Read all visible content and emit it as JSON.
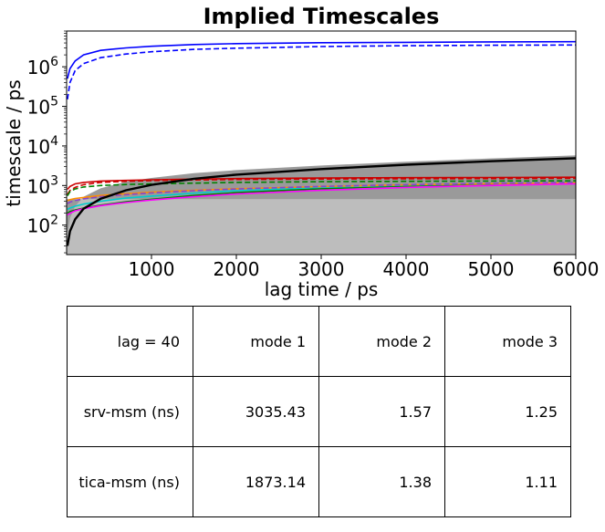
{
  "chart_data": {
    "type": "line",
    "title": "Implied Timescales",
    "xlabel": "lag time / ps",
    "ylabel": "timescale / ps",
    "xlim": [
      0,
      6000
    ],
    "ylim": [
      18,
      8000000
    ],
    "yscale": "log",
    "xticks": [
      1000,
      2000,
      3000,
      4000,
      5000,
      6000
    ],
    "xtick_labels": [
      "1000",
      "2000",
      "3000",
      "4000",
      "5000",
      "6000"
    ],
    "yticks": [
      100,
      1000,
      10000,
      100000,
      1000000
    ],
    "ytick_labels": [
      {
        "base": "10",
        "exp": "2"
      },
      {
        "base": "10",
        "exp": "3"
      },
      {
        "base": "10",
        "exp": "4"
      },
      {
        "base": "10",
        "exp": "5"
      },
      {
        "base": "10",
        "exp": "6"
      }
    ],
    "grid": false,
    "x": [
      10,
      40,
      100,
      200,
      400,
      700,
      1000,
      1500,
      2000,
      3000,
      4000,
      5000,
      6000
    ],
    "series": [
      {
        "color": "#0000ff",
        "style": "solid",
        "values": [
          500000,
          900000,
          1400000,
          2000000,
          2600000,
          3000000,
          3300000,
          3650000,
          3850000,
          4050000,
          4150000,
          4250000,
          4300000
        ]
      },
      {
        "color": "#0000ff",
        "style": "dashed",
        "values": [
          150000,
          400000,
          800000,
          1200000,
          1700000,
          2100000,
          2400000,
          2750000,
          2950000,
          3250000,
          3400000,
          3500000,
          3550000
        ]
      },
      {
        "color": "#cc0000",
        "style": "solid",
        "values": [
          800,
          950,
          1100,
          1200,
          1300,
          1350,
          1400,
          1450,
          1500,
          1550,
          1580,
          1600,
          1620
        ]
      },
      {
        "color": "#cc0000",
        "style": "dashed",
        "values": [
          600,
          750,
          900,
          1050,
          1200,
          1280,
          1330,
          1380,
          1420,
          1460,
          1480,
          1500,
          1520
        ]
      },
      {
        "color": "#008000",
        "style": "solid",
        "values": [
          200,
          220,
          240,
          270,
          320,
          390,
          450,
          560,
          660,
          830,
          980,
          1100,
          1200
        ]
      },
      {
        "color": "#008000",
        "style": "dashed",
        "values": [
          550,
          700,
          820,
          920,
          1000,
          1060,
          1100,
          1150,
          1200,
          1250,
          1280,
          1300,
          1320
        ]
      },
      {
        "color": "#00cccc",
        "style": "solid",
        "values": [
          250,
          270,
          300,
          340,
          400,
          480,
          540,
          640,
          740,
          900,
          1020,
          1120,
          1200
        ]
      },
      {
        "color": "#ff8c00",
        "style": "solid",
        "values": [
          420,
          440,
          470,
          500,
          560,
          620,
          680,
          760,
          830,
          940,
          1040,
          1120,
          1180
        ]
      },
      {
        "color": "#ff00ff",
        "style": "solid",
        "values": [
          180,
          200,
          230,
          260,
          310,
          370,
          430,
          520,
          610,
          760,
          890,
          1000,
          1100
        ]
      },
      {
        "color": "#8844cc",
        "style": "dashed",
        "values": [
          350,
          380,
          420,
          460,
          520,
          590,
          650,
          740,
          820,
          950,
          1050,
          1140,
          1200
        ]
      },
      {
        "color": "#000000",
        "style": "solid",
        "values": [
          30,
          70,
          140,
          260,
          460,
          760,
          1040,
          1480,
          1880,
          2600,
          3350,
          4100,
          4900
        ]
      }
    ],
    "upper_band": [
      60,
      150,
      300,
      520,
      850,
      1250,
      1550,
      2050,
      2450,
      3200,
      4000,
      4850,
      5800
    ],
    "cutoff_level": 450
  },
  "table": {
    "rows": [
      [
        "lag = 40",
        "mode 1",
        "mode 2",
        "mode 3"
      ],
      [
        "srv-msm (ns)",
        "3035.43",
        "1.57",
        "1.25"
      ],
      [
        "tica-msm (ns)",
        "1873.14",
        "1.38",
        "1.11"
      ]
    ]
  }
}
